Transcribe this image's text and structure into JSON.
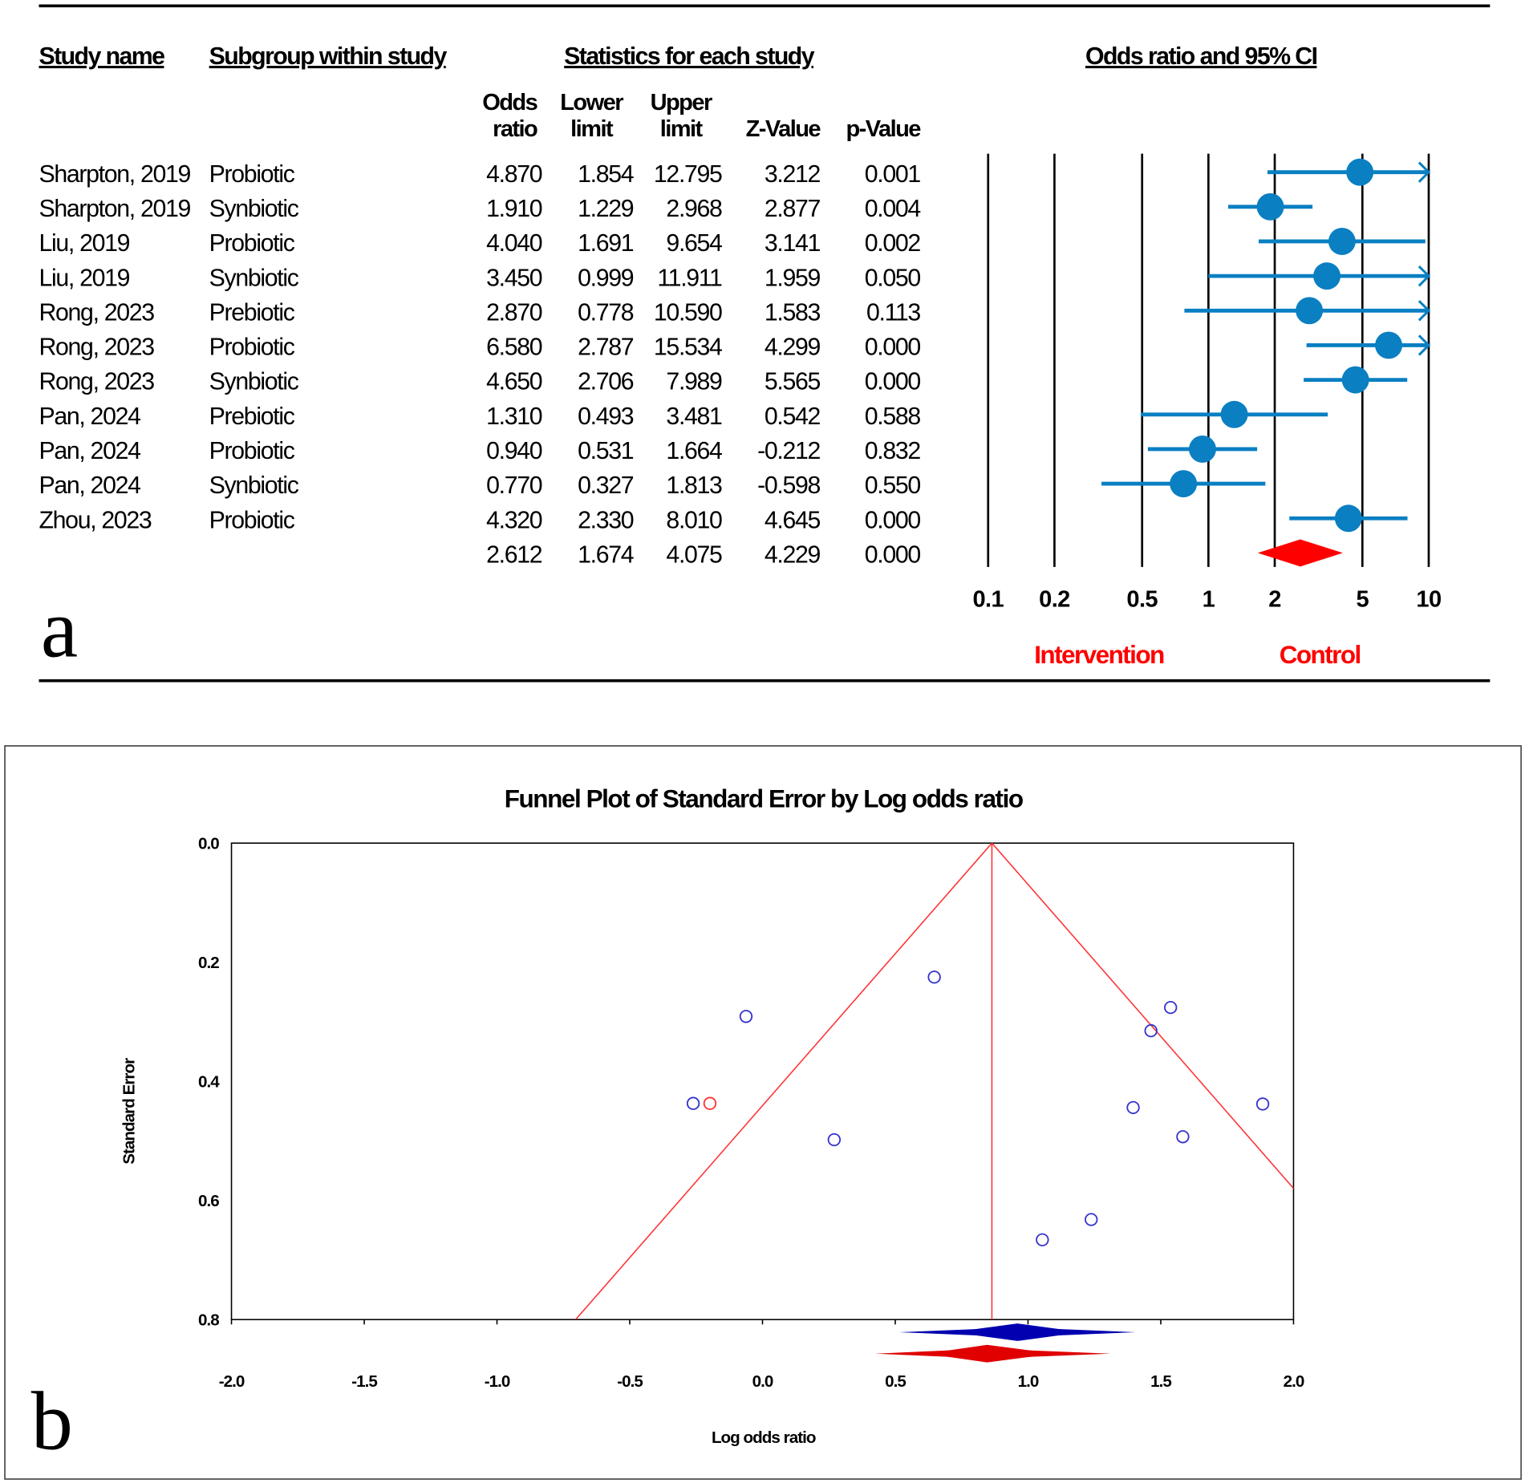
{
  "chart_data": [
    {
      "type": "forest",
      "panel_label": "a",
      "headers": {
        "study_name": "Study name",
        "subgroup": "Subgroup within study",
        "statistics": "Statistics for each study",
        "plot": "Odds ratio and 95% CI"
      },
      "columns": [
        [
          "Odds",
          "ratio"
        ],
        [
          "Lower",
          "limit"
        ],
        [
          "Upper",
          "limit"
        ],
        [
          "",
          "Z-Value"
        ],
        [
          "",
          "p-Value"
        ]
      ],
      "rows": [
        {
          "study": "Sharpton, 2019",
          "subgroup": "Probiotic",
          "or": "4.870",
          "lower": "1.854",
          "upper": "12.795",
          "z": "3.212",
          "p": "0.001"
        },
        {
          "study": "Sharpton, 2019",
          "subgroup": "Synbiotic",
          "or": "1.910",
          "lower": "1.229",
          "upper": "2.968",
          "z": "2.877",
          "p": "0.004"
        },
        {
          "study": "Liu, 2019",
          "subgroup": "Probiotic",
          "or": "4.040",
          "lower": "1.691",
          "upper": "9.654",
          "z": "3.141",
          "p": "0.002"
        },
        {
          "study": "Liu, 2019",
          "subgroup": "Synbiotic",
          "or": "3.450",
          "lower": "0.999",
          "upper": "11.911",
          "z": "1.959",
          "p": "0.050"
        },
        {
          "study": "Rong, 2023",
          "subgroup": "Prebiotic",
          "or": "2.870",
          "lower": "0.778",
          "upper": "10.590",
          "z": "1.583",
          "p": "0.113"
        },
        {
          "study": "Rong, 2023",
          "subgroup": "Probiotic",
          "or": "6.580",
          "lower": "2.787",
          "upper": "15.534",
          "z": "4.299",
          "p": "0.000"
        },
        {
          "study": "Rong, 2023",
          "subgroup": "Synbiotic",
          "or": "4.650",
          "lower": "2.706",
          "upper": "7.989",
          "z": "5.565",
          "p": "0.000"
        },
        {
          "study": "Pan, 2024",
          "subgroup": "Prebiotic",
          "or": "1.310",
          "lower": "0.493",
          "upper": "3.481",
          "z": "0.542",
          "p": "0.588"
        },
        {
          "study": "Pan, 2024",
          "subgroup": "Probiotic",
          "or": "0.940",
          "lower": "0.531",
          "upper": "1.664",
          "z": "-0.212",
          "p": "0.832"
        },
        {
          "study": "Pan, 2024",
          "subgroup": "Synbiotic",
          "or": "0.770",
          "lower": "0.327",
          "upper": "1.813",
          "z": "-0.598",
          "p": "0.550"
        },
        {
          "study": "Zhou, 2023",
          "subgroup": "Probiotic",
          "or": "4.320",
          "lower": "2.330",
          "upper": "8.010",
          "z": "4.645",
          "p": "0.000"
        }
      ],
      "summary": {
        "or": "2.612",
        "lower": "1.674",
        "upper": "4.075",
        "z": "4.229",
        "p": "0.000"
      },
      "x_scale": "log",
      "xlim": [
        0.1,
        10
      ],
      "x_ticks": [
        "0.1",
        "0.2",
        "0.5",
        "1",
        "2",
        "5",
        "10"
      ],
      "favours_left": "Intervention",
      "favours_right": "Control",
      "colors": {
        "study": "#0a7fc2",
        "summary": "#ff0000"
      }
    },
    {
      "type": "scatter",
      "panel_label": "b",
      "title": "Funnel Plot of Standard Error by Log odds ratio",
      "xlabel": "Log odds ratio",
      "ylabel": "Standard Error",
      "xlim": [
        -2.0,
        2.0
      ],
      "ylim": [
        0.0,
        0.8
      ],
      "y_inverted": true,
      "x_ticks": [
        "-2.0",
        "-1.5",
        "-1.0",
        "-0.5",
        "0.0",
        "0.5",
        "1.0",
        "1.5",
        "2.0"
      ],
      "y_ticks": [
        "0.0",
        "0.2",
        "0.4",
        "0.6",
        "0.8"
      ],
      "observed_points": [
        {
          "x": 1.583,
          "y": 0.493
        },
        {
          "x": 0.647,
          "y": 0.225
        },
        {
          "x": 1.396,
          "y": 0.444
        },
        {
          "x": 1.238,
          "y": 0.632
        },
        {
          "x": 1.054,
          "y": 0.666
        },
        {
          "x": 1.884,
          "y": 0.438
        },
        {
          "x": 1.537,
          "y": 0.276
        },
        {
          "x": 0.27,
          "y": 0.498
        },
        {
          "x": -0.062,
          "y": 0.291
        },
        {
          "x": -0.261,
          "y": 0.437
        },
        {
          "x": 1.463,
          "y": 0.315
        }
      ],
      "imputed_points": [
        {
          "x": -0.198,
          "y": 0.437
        }
      ],
      "funnel_center": 0.864,
      "observed_estimate": {
        "center": 0.96,
        "lower": 0.515,
        "upper": 1.405
      },
      "adjusted_estimate": {
        "center": 0.846,
        "lower": 0.425,
        "upper": 1.311
      },
      "colors": {
        "observed": "#3333cc",
        "imputed": "#ff3333",
        "funnel": "#ff3333",
        "observed_diamond": "#0000b0",
        "adjusted_diamond": "#e00000"
      }
    }
  ]
}
